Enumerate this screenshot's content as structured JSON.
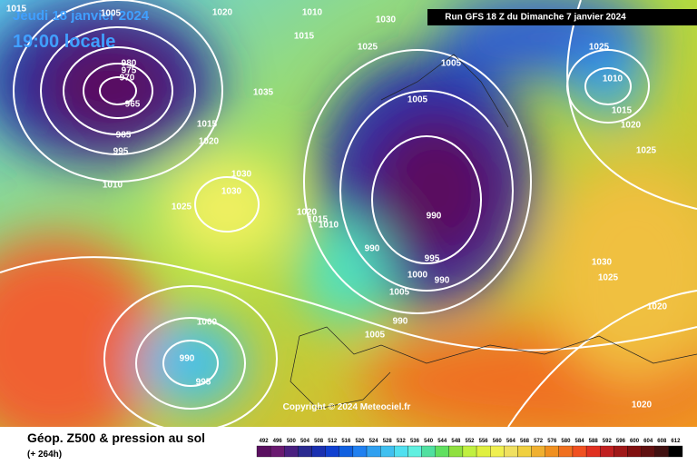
{
  "header": {
    "date": "Jeudi 18 janvier 2024",
    "time": "19:00 locale",
    "run": "Run GFS 18 Z du Dimanche 7 janvier 2024"
  },
  "footer": {
    "title": "Géop. Z500 & pression au sol",
    "lead": "(+ 264h)",
    "copyright": "Copyright © 2024 Meteociel.fr"
  },
  "isobar_labels": [
    "1015",
    "1005",
    "1020",
    "1010",
    "1030",
    "1015",
    "1025",
    "1005",
    "980",
    "975",
    "970",
    "965",
    "985",
    "995",
    "1010",
    "1030",
    "1030",
    "1025",
    "1035",
    "1015",
    "1020",
    "1005",
    "1010",
    "1015",
    "1020",
    "1025",
    "1025",
    "990",
    "990",
    "995",
    "1000",
    "990",
    "1005",
    "990",
    "1005",
    "1020",
    "1015",
    "1010",
    "1030",
    "1025",
    "1020",
    "1000",
    "990",
    "995",
    "1020"
  ],
  "colorbar": {
    "labels": [
      492,
      496,
      500,
      504,
      508,
      512,
      516,
      520,
      524,
      528,
      532,
      536,
      540,
      544,
      548,
      552,
      556,
      560,
      564,
      568,
      572,
      576,
      580,
      584,
      588,
      592,
      596,
      600,
      604,
      608,
      612
    ],
    "colors": [
      "#5a1060",
      "#6a1a70",
      "#4a2080",
      "#2a2a90",
      "#1a30b0",
      "#1040d0",
      "#1060e0",
      "#2080f0",
      "#30a0f0",
      "#40c0f0",
      "#50e0f0",
      "#60f0e0",
      "#50e0a0",
      "#60e060",
      "#90e040",
      "#c0f040",
      "#e0f040",
      "#f0f050",
      "#f0e060",
      "#f0d040",
      "#f0b030",
      "#f09020",
      "#f07020",
      "#f05020",
      "#e03020",
      "#c02020",
      "#a01818",
      "#801010",
      "#601010",
      "#401010",
      "#000000"
    ]
  }
}
